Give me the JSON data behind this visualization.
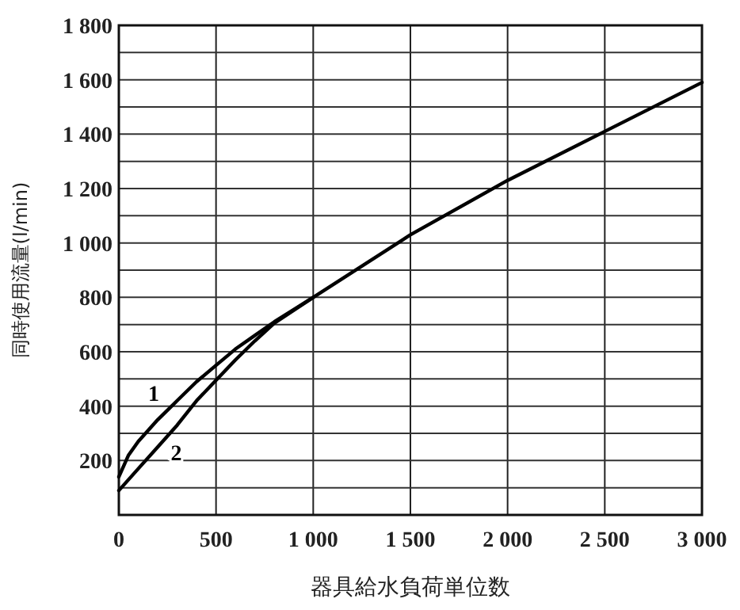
{
  "chart_data": {
    "type": "line",
    "xlabel": "器具給水負荷単位数",
    "ylabel": "同時使用流量(l/min)",
    "xlim": [
      0,
      3000
    ],
    "ylim": [
      0,
      1800
    ],
    "xticks": [
      0,
      500,
      {
        "value": 1000,
        "label": "1 000"
      },
      {
        "value": 1500,
        "label": "1 500"
      },
      {
        "value": 2000,
        "label": "2 000"
      },
      {
        "value": 2500,
        "label": "2 500"
      },
      {
        "value": 3000,
        "label": "3 000"
      }
    ],
    "yticks": [
      {
        "value": 100,
        "label": null
      },
      200,
      {
        "value": 300,
        "label": null
      },
      400,
      {
        "value": 500,
        "label": null
      },
      600,
      {
        "value": 700,
        "label": null
      },
      800,
      {
        "value": 900,
        "label": null
      },
      {
        "value": 1000,
        "label": "1 000"
      },
      {
        "value": 1100,
        "label": null
      },
      {
        "value": 1200,
        "label": "1 200"
      },
      {
        "value": 1300,
        "label": null
      },
      {
        "value": 1400,
        "label": "1 400"
      },
      {
        "value": 1500,
        "label": null
      },
      {
        "value": 1600,
        "label": "1 600"
      },
      {
        "value": 1700,
        "label": null
      },
      {
        "value": 1800,
        "label": "1 800"
      }
    ],
    "grid": true,
    "legend": false,
    "line_style": "solid",
    "marker": "none",
    "series": [
      {
        "name": "1",
        "color": "#000000",
        "x": [
          0,
          50,
          100,
          200,
          300,
          400,
          500,
          600,
          700,
          800,
          1000,
          1500,
          2000,
          2500,
          3000
        ],
        "values": [
          140,
          220,
          270,
          350,
          420,
          490,
          550,
          610,
          660,
          710,
          800,
          1030,
          1230,
          1410,
          1590
        ]
      },
      {
        "name": "2",
        "color": "#000000",
        "x": [
          0,
          100,
          200,
          300,
          400,
          500,
          600,
          700,
          800,
          1000
        ],
        "values": [
          90,
          170,
          250,
          330,
          420,
          495,
          570,
          640,
          705,
          800
        ]
      }
    ]
  }
}
